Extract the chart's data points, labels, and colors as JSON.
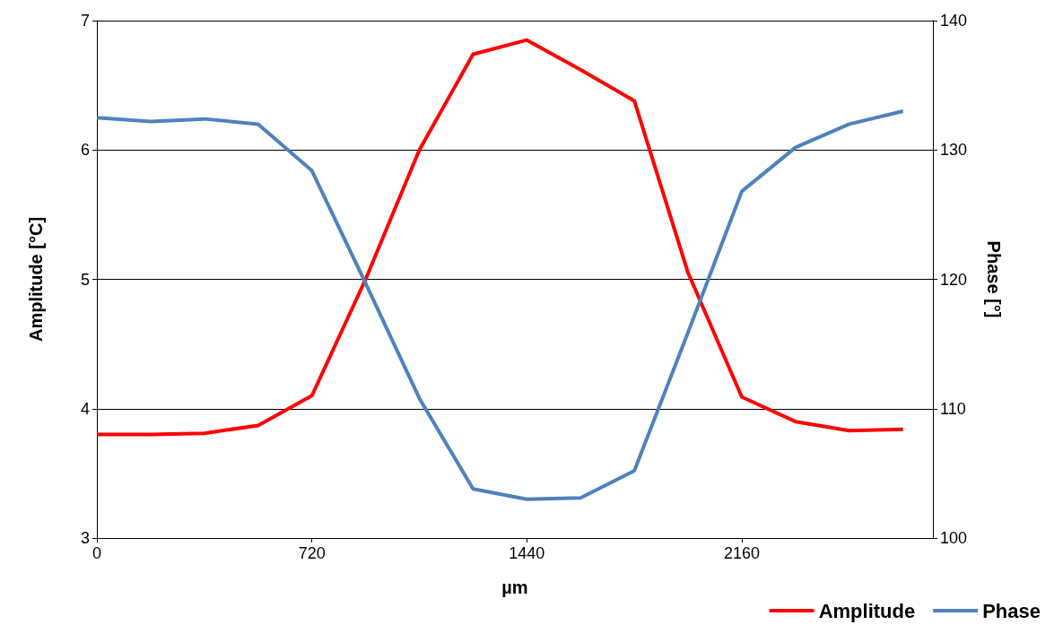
{
  "chart_data": {
    "type": "line",
    "xlabel": "µm",
    "ylabel": "Amplitude [°C]",
    "y2label": "Phase [°]",
    "x": [
      0,
      180,
      360,
      540,
      720,
      900,
      1080,
      1260,
      1440,
      1620,
      1800,
      1980,
      2160,
      2340,
      2520,
      2700
    ],
    "xlim": [
      0,
      2800
    ],
    "xticks": [
      0,
      720,
      1440,
      2160
    ],
    "ylim": [
      3,
      7
    ],
    "yticks": [
      3,
      4,
      5,
      6,
      7
    ],
    "y2lim": [
      100,
      140
    ],
    "y2ticks": [
      100,
      110,
      120,
      130,
      140
    ],
    "grid": "y",
    "legend": "bottom right",
    "marker": "none",
    "line_style": "solid",
    "series": [
      {
        "name": "Amplitude",
        "color": "#ff0000",
        "values": [
          3.8,
          3.8,
          3.81,
          3.87,
          4.1,
          5.0,
          6.0,
          6.74,
          6.85,
          6.62,
          6.38,
          5.05,
          4.09,
          3.9,
          3.83,
          3.84
        ]
      },
      {
        "name": "Phase",
        "color": "#4f81bd",
        "axis": "y2",
        "values": [
          132.5,
          132.2,
          132.4,
          132.0,
          128.4,
          119.7,
          110.8,
          103.8,
          103.0,
          103.1,
          105.2,
          115.9,
          126.8,
          130.2,
          132.0,
          133.0
        ]
      }
    ]
  }
}
